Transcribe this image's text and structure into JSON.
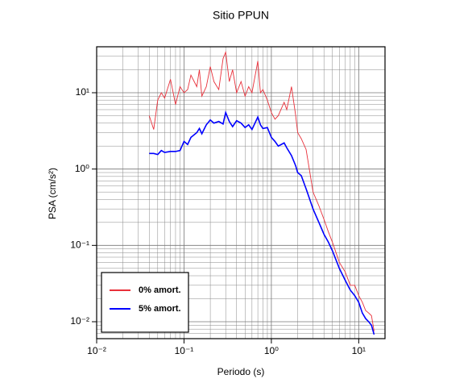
{
  "chart_data": {
    "type": "line",
    "title": "Sitio PPUN",
    "x_label": "Periodo (s)",
    "y_label": "PSA (cm/s²)",
    "log_x": true,
    "log_y": true,
    "grid": true,
    "legend": "lower left",
    "xlim": [
      0.01,
      20
    ],
    "ylim": [
      0.006,
      40
    ],
    "xticks": [
      {
        "value": 0.01,
        "label": "10⁻²"
      },
      {
        "value": 0.1,
        "label": "10⁻¹"
      },
      {
        "value": 1,
        "label": "10⁰"
      },
      {
        "value": 10,
        "label": "10¹"
      }
    ],
    "yticks": [
      {
        "value": 0.01,
        "label": "10⁻²"
      },
      {
        "value": 0.1,
        "label": "10⁻¹"
      },
      {
        "value": 1,
        "label": "10⁰"
      },
      {
        "value": 10,
        "label": "10¹"
      }
    ],
    "xminorticks": [
      0.02,
      0.03,
      0.04,
      0.05,
      0.06,
      0.07,
      0.08,
      0.09,
      0.2,
      0.3,
      0.4,
      0.5,
      0.6,
      0.7,
      0.8,
      0.9,
      2,
      3,
      4,
      5,
      6,
      7,
      8,
      9,
      20
    ],
    "yminorticks": [
      0.006,
      0.007,
      0.008,
      0.009,
      0.02,
      0.03,
      0.04,
      0.05,
      0.06,
      0.07,
      0.08,
      0.09,
      0.2,
      0.3,
      0.4,
      0.5,
      0.6,
      0.7,
      0.8,
      0.9,
      2,
      3,
      4,
      5,
      6,
      7,
      8,
      9,
      20,
      30,
      40
    ],
    "x": [
      0.04,
      0.045,
      0.05,
      0.055,
      0.06,
      0.07,
      0.08,
      0.09,
      0.1,
      0.11,
      0.12,
      0.14,
      0.15,
      0.16,
      0.18,
      0.2,
      0.22,
      0.25,
      0.28,
      0.3,
      0.33,
      0.36,
      0.4,
      0.45,
      0.5,
      0.55,
      0.6,
      0.7,
      0.75,
      0.8,
      0.9,
      1.0,
      1.1,
      1.2,
      1.4,
      1.5,
      1.7,
      1.9,
      2.0,
      2.2,
      2.5,
      3,
      3.5,
      4,
      4.5,
      5,
      6,
      7,
      8,
      9,
      10,
      11,
      12,
      13,
      14,
      15
    ],
    "series": [
      {
        "name": "0% amort.",
        "color": "#e8303a",
        "values": [
          5.0,
          3.3,
          8,
          10,
          8.5,
          15,
          7,
          12,
          10,
          11,
          17,
          12,
          20,
          9,
          12,
          22,
          14,
          11,
          28,
          34,
          14,
          20,
          10,
          14,
          9,
          12,
          10,
          26,
          10,
          11,
          8,
          5.5,
          4.5,
          5,
          7.5,
          6,
          12,
          5,
          3,
          2.5,
          1.8,
          0.5,
          0.33,
          0.22,
          0.15,
          0.11,
          0.06,
          0.045,
          0.03,
          0.03,
          0.022,
          0.018,
          0.014,
          0.013,
          0.012,
          0.0075
        ]
      },
      {
        "name": "5% amort.",
        "color": "#0000ff",
        "values": [
          1.6,
          1.6,
          1.55,
          1.75,
          1.65,
          1.7,
          1.7,
          1.75,
          2.3,
          2.1,
          2.6,
          3.0,
          3.4,
          2.9,
          3.8,
          4.4,
          4.0,
          4.2,
          3.9,
          5.5,
          4.2,
          3.6,
          4.3,
          4.0,
          3.5,
          3.8,
          3.3,
          4.8,
          3.8,
          3.4,
          3.5,
          2.6,
          2.3,
          2.0,
          2.2,
          1.9,
          1.5,
          1.1,
          0.9,
          0.82,
          0.55,
          0.3,
          0.2,
          0.14,
          0.11,
          0.085,
          0.05,
          0.035,
          0.026,
          0.022,
          0.018,
          0.013,
          0.011,
          0.01,
          0.009,
          0.0068
        ]
      }
    ]
  }
}
